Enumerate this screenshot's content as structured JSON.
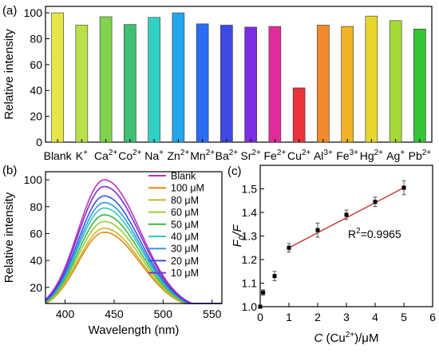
{
  "chart_data": [
    {
      "panel_label": "(a)",
      "type": "bar",
      "ylabel": "Relative intensity",
      "ylim": [
        0,
        105
      ],
      "yticks": [
        0,
        20,
        40,
        60,
        80,
        100
      ],
      "categories": [
        {
          "base": "Blank",
          "sup": ""
        },
        {
          "base": "K",
          "sup": "+"
        },
        {
          "base": "Ca",
          "sup": "2+"
        },
        {
          "base": "Co",
          "sup": "2+"
        },
        {
          "base": "Na",
          "sup": "+"
        },
        {
          "base": "Zn",
          "sup": "2+"
        },
        {
          "base": "Mn",
          "sup": "2+"
        },
        {
          "base": "Ba",
          "sup": "2+"
        },
        {
          "base": "Sr",
          "sup": "2+"
        },
        {
          "base": "Fe",
          "sup": "2+"
        },
        {
          "base": "Cu",
          "sup": "2+"
        },
        {
          "base": "Al",
          "sup": "3+"
        },
        {
          "base": "Fe",
          "sup": "3+"
        },
        {
          "base": "Hg",
          "sup": "2+"
        },
        {
          "base": "Ag",
          "sup": "+"
        },
        {
          "base": "Pb",
          "sup": "2+"
        }
      ],
      "values": [
        100,
        90.5,
        97,
        91,
        96.5,
        100,
        91.5,
        90.5,
        89,
        89.5,
        42,
        90.5,
        89.5,
        97.5,
        94,
        87.5
      ],
      "colors": [
        "#e6e64c",
        "#b9e04a",
        "#7fd34d",
        "#3fbf72",
        "#33cfc4",
        "#23a6ea",
        "#2b6cf0",
        "#3d49e0",
        "#7a2ee0",
        "#e02d9a",
        "#e8343a",
        "#f08a2a",
        "#f0b226",
        "#e6d62e",
        "#a4d93a",
        "#35c435"
      ]
    },
    {
      "panel_label": "(b)",
      "type": "line",
      "xlabel": "Wavelength (nm)",
      "ylabel": "Relative intensity",
      "xlim": [
        380,
        560
      ],
      "ylim": [
        8,
        106
      ],
      "xticks": [
        400,
        450,
        500,
        550
      ],
      "yticks": [
        20,
        40,
        60,
        80,
        100
      ],
      "peak_wavelength": 440,
      "series": [
        {
          "name": "Blank",
          "peak": 100,
          "color": "#c030c0"
        },
        {
          "name": "100 μM",
          "peak": 61,
          "color": "#e08a1a"
        },
        {
          "name": "80 μM",
          "peak": 64,
          "color": "#c8b42a"
        },
        {
          "name": "60 μM",
          "peak": 69,
          "color": "#9fc83a"
        },
        {
          "name": "50 μM",
          "peak": 74,
          "color": "#3db83d"
        },
        {
          "name": "40 μM",
          "peak": 79,
          "color": "#35c8c0"
        },
        {
          "name": "30 μM",
          "peak": 83,
          "color": "#2a9ae0"
        },
        {
          "name": "20 μM",
          "peak": 88,
          "color": "#3a55e0"
        },
        {
          "name": "10 μM",
          "peak": 95,
          "color": "#7a30d0"
        }
      ]
    },
    {
      "panel_label": "(c)",
      "type": "scatter",
      "xlabel": {
        "italic": "C",
        "text": " (Cu",
        "sup": "2+",
        "tail": ")/μM"
      },
      "ylabel": {
        "base": "F",
        "sub": "0",
        "tail": "/F"
      },
      "xlim": [
        0,
        6
      ],
      "ylim": [
        1.0,
        1.6
      ],
      "xticks": [
        0,
        1,
        2,
        3,
        4,
        5,
        6
      ],
      "yticks": [
        1.0,
        1.1,
        1.2,
        1.3,
        1.4,
        1.5
      ],
      "x": [
        0,
        0.1,
        0.5,
        1,
        2,
        3,
        4,
        5
      ],
      "y": [
        1.0,
        1.06,
        1.13,
        1.25,
        1.325,
        1.39,
        1.445,
        1.505
      ],
      "err": [
        0.0,
        0.012,
        0.02,
        0.018,
        0.03,
        0.02,
        0.02,
        0.03
      ],
      "fit": {
        "x0": 1,
        "x1": 5,
        "y0": 1.25,
        "y1": 1.505,
        "color": "#c0392b"
      },
      "annotation": {
        "base": "R",
        "sup": "2",
        "tail": "=0.9965"
      }
    }
  ]
}
